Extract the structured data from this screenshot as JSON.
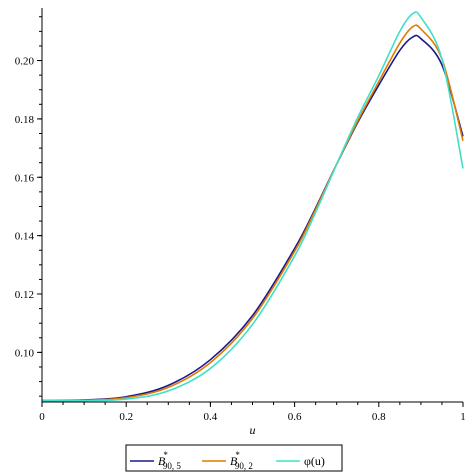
{
  "chart_data": {
    "type": "line",
    "xlabel": "u",
    "ylabel": "",
    "xlim": [
      0,
      1
    ],
    "ylim": [
      0.083,
      0.218
    ],
    "x_ticks": [
      0,
      0.2,
      0.4,
      0.6,
      0.8,
      1
    ],
    "x_tick_labels": [
      "0",
      "0.2",
      "0.4",
      "0.6",
      "0.8",
      "1"
    ],
    "y_ticks": [
      0.1,
      0.12,
      0.14,
      0.16,
      0.18,
      0.2
    ],
    "y_tick_labels": [
      "0.10",
      "0.12",
      "0.14",
      "0.16",
      "0.18",
      "0.20"
    ],
    "grid": false,
    "legend_position": "bottom",
    "x": [
      0,
      0.1,
      0.2,
      0.3,
      0.4,
      0.5,
      0.6,
      0.65,
      0.7,
      0.75,
      0.8,
      0.85,
      0.88,
      0.9,
      0.95,
      1.0
    ],
    "series": [
      {
        "name": "B*90, 5",
        "legend": {
          "base": "B",
          "sup": "*",
          "sub": "90, 5"
        },
        "color": "#1a1a8c",
        "values": [
          0.0835,
          0.0837,
          0.0848,
          0.0887,
          0.0975,
          0.1126,
          0.1356,
          0.1495,
          0.1645,
          0.1788,
          0.1916,
          0.2035,
          0.208,
          0.2075,
          0.1985,
          0.174
        ]
      },
      {
        "name": "B*90, 2",
        "legend": {
          "base": "B",
          "sup": "*",
          "sub": "90, 2"
        },
        "color": "#e07b00",
        "values": [
          0.0835,
          0.0836,
          0.0845,
          0.088,
          0.0965,
          0.1116,
          0.1346,
          0.149,
          0.1645,
          0.1793,
          0.1928,
          0.206,
          0.2115,
          0.2108,
          0.2005,
          0.1725
        ]
      },
      {
        "name": "φ(u)",
        "legend": {
          "base": "φ(u)"
        },
        "color": "#40e0c8",
        "values": [
          0.0835,
          0.0835,
          0.084,
          0.0868,
          0.0945,
          0.1096,
          0.133,
          0.148,
          0.1645,
          0.1805,
          0.1948,
          0.21,
          0.216,
          0.2148,
          0.2005,
          0.163
        ]
      }
    ]
  }
}
